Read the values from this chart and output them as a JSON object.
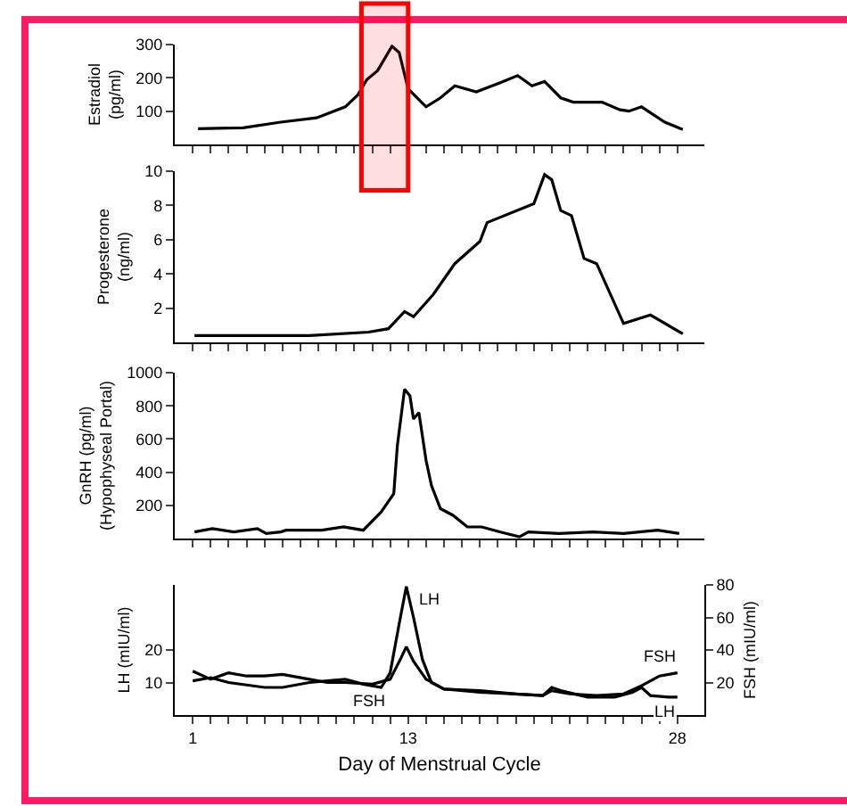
{
  "chart_data": [
    {
      "type": "line",
      "ylabel": "Estradiol\n(pg/ml)",
      "xlim": [
        0,
        29.5
      ],
      "ylim": [
        0,
        300
      ],
      "yticks": [
        100,
        200,
        300
      ],
      "tick_labels": "y",
      "xticks": [
        {
          "value": 1,
          "label": null
        },
        {
          "value": 2,
          "label": null
        },
        {
          "value": 3,
          "label": null
        },
        {
          "value": 4,
          "label": null
        },
        {
          "value": 5,
          "label": null
        },
        {
          "value": 6,
          "label": null
        },
        {
          "value": 7,
          "label": null
        },
        {
          "value": 8,
          "label": null
        },
        {
          "value": 9,
          "label": null
        },
        {
          "value": 10,
          "label": null
        },
        {
          "value": 11,
          "label": null
        },
        {
          "value": 12,
          "label": null
        },
        {
          "value": 13,
          "label": null
        },
        {
          "value": 14,
          "label": null
        },
        {
          "value": 15,
          "label": null
        },
        {
          "value": 16,
          "label": null
        },
        {
          "value": 17,
          "label": null
        },
        {
          "value": 18,
          "label": null
        },
        {
          "value": 19,
          "label": null
        },
        {
          "value": 20,
          "label": null
        },
        {
          "value": 21,
          "label": null
        },
        {
          "value": 22,
          "label": null
        },
        {
          "value": 23,
          "label": null
        },
        {
          "value": 24,
          "label": null
        },
        {
          "value": 25,
          "label": null
        },
        {
          "value": 26,
          "label": null
        },
        {
          "value": 27,
          "label": null
        },
        {
          "value": 28,
          "label": null
        }
      ],
      "bands": [
        {
          "axis": "x",
          "from": 10.4,
          "to": 13.0,
          "color": "#ff0000"
        }
      ],
      "series": [
        {
          "color": "#000000",
          "x": [
            1.3,
            3.8,
            5.9,
            7.9,
            9.5,
            10.2,
            10.7,
            11.3,
            12.1,
            12.5,
            13.0,
            14.0,
            14.8,
            15.6,
            16.8,
            18.1,
            19.1,
            19.9,
            20.6,
            21.5,
            22.2,
            23.8,
            24.8,
            25.3,
            26.0,
            27.3,
            28.3
          ],
          "values": [
            47,
            50,
            67,
            80,
            113,
            149,
            195,
            222,
            295,
            276,
            167,
            113,
            140,
            176,
            158,
            185,
            207,
            176,
            189,
            140,
            127,
            127,
            104,
            100,
            113,
            67,
            45
          ]
        }
      ]
    },
    {
      "type": "line",
      "ylabel": "Progesterone\n(ng/ml)",
      "xlim": [
        0,
        29.5
      ],
      "ylim": [
        0,
        10
      ],
      "yticks": [
        2,
        4,
        6,
        8,
        10
      ],
      "tick_labels": "y",
      "xticks": [
        {
          "value": 1,
          "label": null
        },
        {
          "value": 2,
          "label": null
        },
        {
          "value": 3,
          "label": null
        },
        {
          "value": 4,
          "label": null
        },
        {
          "value": 5,
          "label": null
        },
        {
          "value": 6,
          "label": null
        },
        {
          "value": 7,
          "label": null
        },
        {
          "value": 8,
          "label": null
        },
        {
          "value": 9,
          "label": null
        },
        {
          "value": 10,
          "label": null
        },
        {
          "value": 11,
          "label": null
        },
        {
          "value": 12,
          "label": null
        },
        {
          "value": 13,
          "label": null
        },
        {
          "value": 14,
          "label": null
        },
        {
          "value": 15,
          "label": null
        },
        {
          "value": 16,
          "label": null
        },
        {
          "value": 17,
          "label": null
        },
        {
          "value": 18,
          "label": null
        },
        {
          "value": 19,
          "label": null
        },
        {
          "value": 20,
          "label": null
        },
        {
          "value": 21,
          "label": null
        },
        {
          "value": 22,
          "label": null
        },
        {
          "value": 23,
          "label": null
        },
        {
          "value": 24,
          "label": null
        },
        {
          "value": 25,
          "label": null
        },
        {
          "value": 26,
          "label": null
        },
        {
          "value": 27,
          "label": null
        },
        {
          "value": 28,
          "label": null
        }
      ],
      "series": [
        {
          "color": "#000000",
          "x": [
            1.1,
            7.5,
            10.8,
            11.9,
            12.8,
            13.3,
            14.4,
            15.6,
            17.0,
            17.4,
            20.0,
            20.6,
            21.0,
            21.5,
            22.1,
            22.8,
            23.5,
            25.0,
            26.5,
            28.3
          ],
          "values": [
            0.4,
            0.4,
            0.6,
            0.8,
            1.8,
            1.5,
            2.8,
            4.6,
            5.9,
            7.0,
            8.1,
            9.8,
            9.5,
            7.7,
            7.4,
            4.9,
            4.6,
            1.1,
            1.6,
            0.5
          ]
        }
      ]
    },
    {
      "type": "line",
      "ylabel": "GnRH (pg/ml)\n(Hypophyseal Portal)",
      "xlim": [
        0,
        29.5
      ],
      "ylim": [
        0,
        1000
      ],
      "yticks": [
        200,
        400,
        600,
        800,
        1000
      ],
      "tick_labels": "y",
      "xticks": [
        {
          "value": 1,
          "label": null
        },
        {
          "value": 2,
          "label": null
        },
        {
          "value": 3,
          "label": null
        },
        {
          "value": 4,
          "label": null
        },
        {
          "value": 5,
          "label": null
        },
        {
          "value": 6,
          "label": null
        },
        {
          "value": 7,
          "label": null
        },
        {
          "value": 8,
          "label": null
        },
        {
          "value": 9,
          "label": null
        },
        {
          "value": 10,
          "label": null
        },
        {
          "value": 11,
          "label": null
        },
        {
          "value": 12,
          "label": null
        },
        {
          "value": 13,
          "label": null
        },
        {
          "value": 14,
          "label": null
        },
        {
          "value": 15,
          "label": null
        },
        {
          "value": 16,
          "label": null
        },
        {
          "value": 17,
          "label": null
        },
        {
          "value": 18,
          "label": null
        },
        {
          "value": 19,
          "label": null
        },
        {
          "value": 20,
          "label": null
        },
        {
          "value": 21,
          "label": null
        },
        {
          "value": 22,
          "label": null
        },
        {
          "value": 23,
          "label": null
        },
        {
          "value": 24,
          "label": null
        },
        {
          "value": 25,
          "label": null
        },
        {
          "value": 26,
          "label": null
        },
        {
          "value": 27,
          "label": null
        },
        {
          "value": 28,
          "label": null
        }
      ],
      "series": [
        {
          "color": "#000000",
          "x": [
            1.1,
            2.1,
            3.3,
            4.6,
            5.1,
            5.9,
            6.2,
            8.2,
            9.4,
            10.5,
            11.5,
            12.2,
            12.4,
            12.8,
            13.1,
            13.3,
            13.6,
            14.0,
            14.3,
            14.8,
            15.5,
            16.3,
            17.1,
            18.1,
            19.2,
            19.7,
            21.4,
            23.3,
            25.0,
            26.9,
            28.1
          ],
          "values": [
            40,
            60,
            40,
            60,
            30,
            40,
            50,
            50,
            70,
            50,
            160,
            270,
            560,
            900,
            860,
            720,
            760,
            470,
            320,
            180,
            140,
            70,
            70,
            40,
            10,
            40,
            30,
            40,
            30,
            50,
            30
          ]
        }
      ]
    },
    {
      "type": "line",
      "ylabel": "LH (mIU/ml)",
      "y2label": "FSH (mIU/ml)",
      "xlabel": "Day of Menstrual Cycle",
      "xlim": [
        0,
        29.5
      ],
      "ylim": [
        0,
        40
      ],
      "yticks": [
        10,
        20
      ],
      "y2lim": [
        0,
        80
      ],
      "y2ticks": [
        20,
        40,
        60,
        80
      ],
      "xticks": [
        1,
        {
          "value": 2,
          "label": null
        },
        {
          "value": 3,
          "label": null
        },
        {
          "value": 4,
          "label": null
        },
        {
          "value": 5,
          "label": null
        },
        {
          "value": 6,
          "label": null
        },
        {
          "value": 7,
          "label": null
        },
        {
          "value": 8,
          "label": null
        },
        {
          "value": 9,
          "label": null
        },
        {
          "value": 10,
          "label": null
        },
        {
          "value": 11,
          "label": null
        },
        {
          "value": 12,
          "label": null
        },
        13,
        {
          "value": 14,
          "label": null
        },
        {
          "value": 15,
          "label": null
        },
        {
          "value": 16,
          "label": null
        },
        {
          "value": 17,
          "label": null
        },
        {
          "value": 18,
          "label": null
        },
        {
          "value": 19,
          "label": null
        },
        {
          "value": 20,
          "label": null
        },
        {
          "value": 21,
          "label": null
        },
        {
          "value": 22,
          "label": null
        },
        {
          "value": 23,
          "label": null
        },
        {
          "value": 24,
          "label": null
        },
        {
          "value": 25,
          "label": null
        },
        {
          "value": 26,
          "label": null
        },
        {
          "value": 27,
          "label": null
        },
        28
      ],
      "annotations": [
        {
          "text": "LH",
          "x": 12.9,
          "y": 39.5
        },
        "FSH"
      ],
      "series": [
        {
          "name": "LH",
          "color": "#000000",
          "x": [
            1,
            2,
            3,
            5,
            6,
            7.5,
            8.5,
            9.5,
            10.5,
            11.5,
            12,
            12.5,
            12.9,
            13.3,
            13.8,
            14.3,
            15,
            17,
            19,
            20.5,
            21,
            21.5,
            23,
            24.5,
            25.5,
            26,
            26.5,
            27.5,
            28
          ],
          "values": [
            10.5,
            11.5,
            10,
            8.5,
            8.5,
            10,
            10.5,
            11,
            9.5,
            8.5,
            13,
            28,
            39.5,
            30,
            17,
            10,
            8,
            7.5,
            6.5,
            6,
            8.5,
            7.5,
            5.5,
            5.5,
            7,
            8.5,
            6,
            5.5,
            5.5
          ]
        },
        {
          "name": "FSH",
          "axis": "y2",
          "color": "#000000",
          "x": [
            1,
            2,
            3,
            4,
            5,
            6,
            7.5,
            8.5,
            9.5,
            11,
            12,
            12.6,
            12.9,
            13.3,
            14,
            15,
            17,
            19,
            20.5,
            21,
            22,
            23.5,
            25,
            26,
            27,
            28
          ],
          "values": [
            27,
            22,
            26,
            24,
            24,
            25,
            22,
            20,
            20,
            19,
            22,
            35,
            42,
            33,
            22,
            16,
            14,
            13,
            12,
            15,
            13,
            12,
            13,
            18,
            24,
            26
          ]
        }
      ]
    }
  ]
}
